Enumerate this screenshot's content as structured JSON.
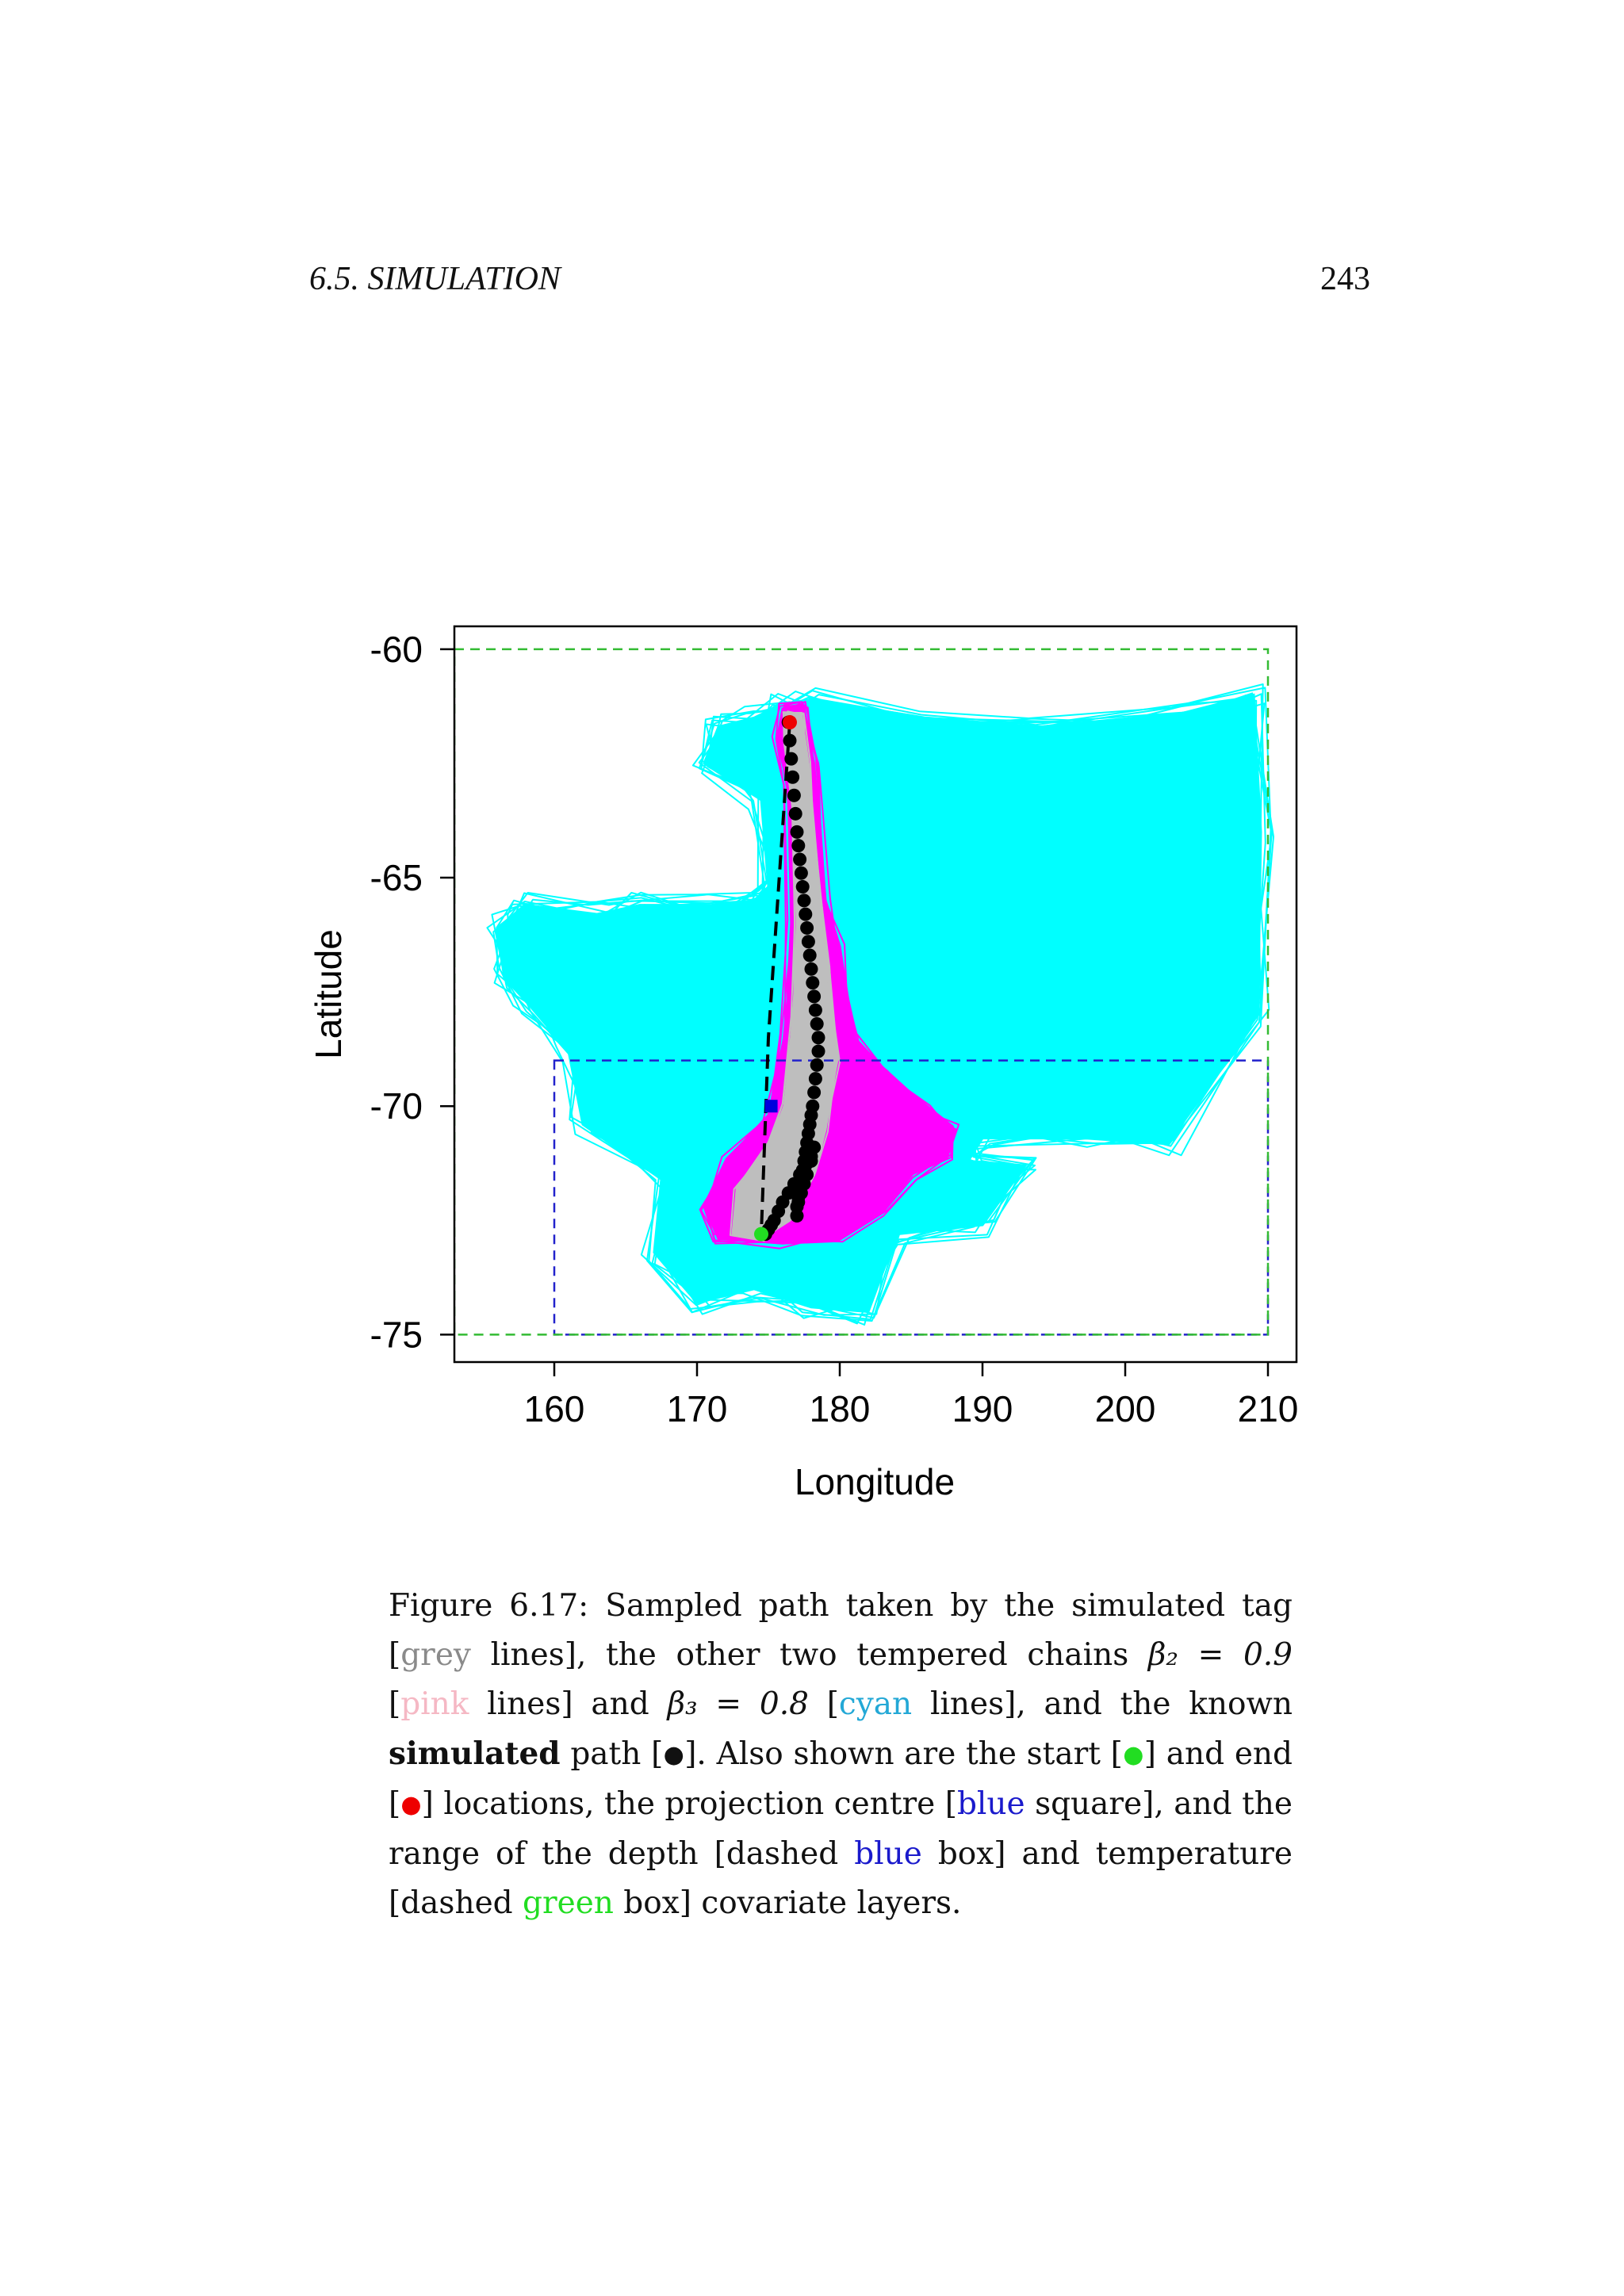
{
  "header": {
    "running_head": "6.5.  SIMULATION",
    "page_number": "243"
  },
  "chart_data": {
    "type": "line",
    "title": "",
    "xlabel": "Longitude",
    "ylabel": "Latitude",
    "xlim": [
      153,
      212
    ],
    "ylim": [
      -75.6,
      -59.5
    ],
    "xticks": [
      160,
      170,
      180,
      190,
      200,
      210
    ],
    "yticks": [
      -60,
      -65,
      -70,
      -75
    ],
    "xtick_labels": [
      "160",
      "170",
      "180",
      "190",
      "200",
      "210"
    ],
    "ytick_labels": [
      "-60",
      "-65",
      "-70",
      "-75"
    ],
    "grid": false,
    "colors": {
      "cyan": "#00ffff",
      "magenta": "#ff00ff",
      "grey": "#bebebe",
      "known_path": "#000000",
      "start": "#22dd22",
      "end": "#ee0000",
      "projection_centre": "#0000dd",
      "depth_box": "#2222cc",
      "temperature_box": "#33bb33"
    },
    "cyan_region": [
      [
        176,
        -61.2
      ],
      [
        178,
        -61.1
      ],
      [
        186,
        -61.5
      ],
      [
        194,
        -61.7
      ],
      [
        204,
        -61.4
      ],
      [
        209,
        -61.0
      ],
      [
        209.5,
        -64
      ],
      [
        209.3,
        -68.0
      ],
      [
        203,
        -70.8
      ],
      [
        198,
        -70.7
      ],
      [
        190,
        -70.7
      ],
      [
        189,
        -71.2
      ],
      [
        193,
        -71.3
      ],
      [
        190,
        -72.6
      ],
      [
        184,
        -72.8
      ],
      [
        182,
        -74.5
      ],
      [
        178,
        -74.4
      ],
      [
        174,
        -74.0
      ],
      [
        170,
        -74.3
      ],
      [
        167,
        -73.2
      ],
      [
        167.5,
        -71.6
      ],
      [
        162,
        -70.4
      ],
      [
        161,
        -68.8
      ],
      [
        158,
        -67.7
      ],
      [
        156.5,
        -67.2
      ],
      [
        156,
        -66.1
      ],
      [
        158,
        -65.6
      ],
      [
        163,
        -65.8
      ],
      [
        166,
        -65.6
      ],
      [
        171,
        -65.6
      ],
      [
        174,
        -65.5
      ],
      [
        175,
        -65.2
      ],
      [
        174.5,
        -63.3
      ],
      [
        170.5,
        -62.5
      ],
      [
        171.5,
        -61.7
      ],
      [
        174,
        -61.5
      ]
    ],
    "magenta_region": [
      [
        176.0,
        -61.3
      ],
      [
        177.4,
        -61.2
      ],
      [
        178.2,
        -62.5
      ],
      [
        179.0,
        -65.5
      ],
      [
        180.0,
        -66.5
      ],
      [
        181.0,
        -68.5
      ],
      [
        183.0,
        -69.2
      ],
      [
        186.0,
        -70.0
      ],
      [
        188.0,
        -70.5
      ],
      [
        187.5,
        -71.1
      ],
      [
        185.0,
        -71.5
      ],
      [
        183.0,
        -72.3
      ],
      [
        180.0,
        -72.9
      ],
      [
        176.0,
        -73.0
      ],
      [
        171.5,
        -72.9
      ],
      [
        170.5,
        -72.2
      ],
      [
        172.0,
        -71.2
      ],
      [
        175.0,
        -70.2
      ],
      [
        176.2,
        -68.5
      ],
      [
        176.6,
        -66.0
      ],
      [
        176.4,
        -63.0
      ],
      [
        175.6,
        -62.0
      ]
    ],
    "grey_region": [
      [
        176.2,
        -61.4
      ],
      [
        177.3,
        -61.4
      ],
      [
        177.8,
        -62.5
      ],
      [
        178.5,
        -65.0
      ],
      [
        179.2,
        -67.0
      ],
      [
        179.8,
        -69.0
      ],
      [
        179.0,
        -70.5
      ],
      [
        178.2,
        -71.5
      ],
      [
        176.5,
        -72.5
      ],
      [
        174.5,
        -72.9
      ],
      [
        172.5,
        -72.8
      ],
      [
        172.8,
        -71.8
      ],
      [
        175.0,
        -70.8
      ],
      [
        176.2,
        -70.0
      ],
      [
        176.8,
        -68.0
      ],
      [
        177.0,
        -66.0
      ],
      [
        176.8,
        -63.5
      ],
      [
        176.3,
        -62.0
      ]
    ],
    "known_path_x": [
      176.4,
      176.5,
      176.6,
      176.7,
      176.8,
      176.9,
      177.0,
      177.1,
      177.2,
      177.3,
      177.4,
      177.5,
      177.6,
      177.7,
      177.8,
      177.9,
      178.0,
      178.1,
      178.2,
      178.3,
      178.4,
      178.5,
      178.5,
      178.4,
      178.3,
      178.2,
      178.1,
      178.0,
      177.9,
      177.8,
      177.7,
      177.6,
      177.5,
      177.4,
      177.3,
      177.2,
      177.1,
      177.0,
      177.0,
      177.1,
      177.3,
      177.5,
      177.7,
      178.0,
      178.2,
      178.0,
      177.6,
      177.2,
      176.8,
      176.4,
      176.0,
      175.7,
      175.4,
      175.2,
      175.0,
      174.8
    ],
    "known_path_y": [
      -61.6,
      -62.0,
      -62.4,
      -62.8,
      -63.2,
      -63.6,
      -64.0,
      -64.3,
      -64.6,
      -64.9,
      -65.2,
      -65.5,
      -65.8,
      -66.1,
      -66.4,
      -66.7,
      -67.0,
      -67.3,
      -67.6,
      -67.9,
      -68.2,
      -68.5,
      -68.8,
      -69.1,
      -69.4,
      -69.7,
      -70.0,
      -70.2,
      -70.4,
      -70.6,
      -70.8,
      -71.0,
      -71.2,
      -71.4,
      -71.6,
      -71.8,
      -72.0,
      -72.2,
      -72.4,
      -72.1,
      -71.9,
      -71.7,
      -71.5,
      -71.2,
      -70.9,
      -71.1,
      -71.3,
      -71.5,
      -71.7,
      -71.9,
      -72.1,
      -72.3,
      -72.5,
      -72.6,
      -72.7,
      -72.8
    ],
    "start": [
      174.5,
      -72.8
    ],
    "end": [
      176.5,
      -61.6
    ],
    "projection_centre": [
      175.2,
      -70.0
    ],
    "dashed_connector": [
      [
        176.5,
        -61.6
      ],
      [
        175.0,
        -68.5
      ],
      [
        174.5,
        -72.8
      ]
    ],
    "depth_box": {
      "lon": [
        160,
        210
      ],
      "lat": [
        -75,
        -69
      ]
    },
    "temperature_box": {
      "lon": [
        153,
        210
      ],
      "lat": [
        -75,
        -60
      ]
    }
  },
  "caption": {
    "lead": "Figure 6.17: Sampled path taken by the simulated tag [",
    "grey_word": "grey",
    "t1": " lines], the other two tempered chains ",
    "beta2": "β₂ = 0.9",
    "t2": " [",
    "pink_word": "pink",
    "t3": " lines] and ",
    "beta3": "β₃ = 0.8",
    "t4": " [",
    "cyan_word": "cyan",
    "t5": " lines], and the known ",
    "bold_word": "simulated",
    "t6": " path [",
    "black_dot": "●",
    "t7": "]. Also shown are the start [",
    "green_dot": "●",
    "t8": "] and end [",
    "red_dot": "●",
    "t9": "] locations, the projection centre [",
    "blue_word1": "blue",
    "t10": " square], and the range of the depth [dashed ",
    "blue_word2": "blue",
    "t11": " box] and temperature [dashed ",
    "green_word": "green",
    "t12": " box] covariate layers."
  }
}
